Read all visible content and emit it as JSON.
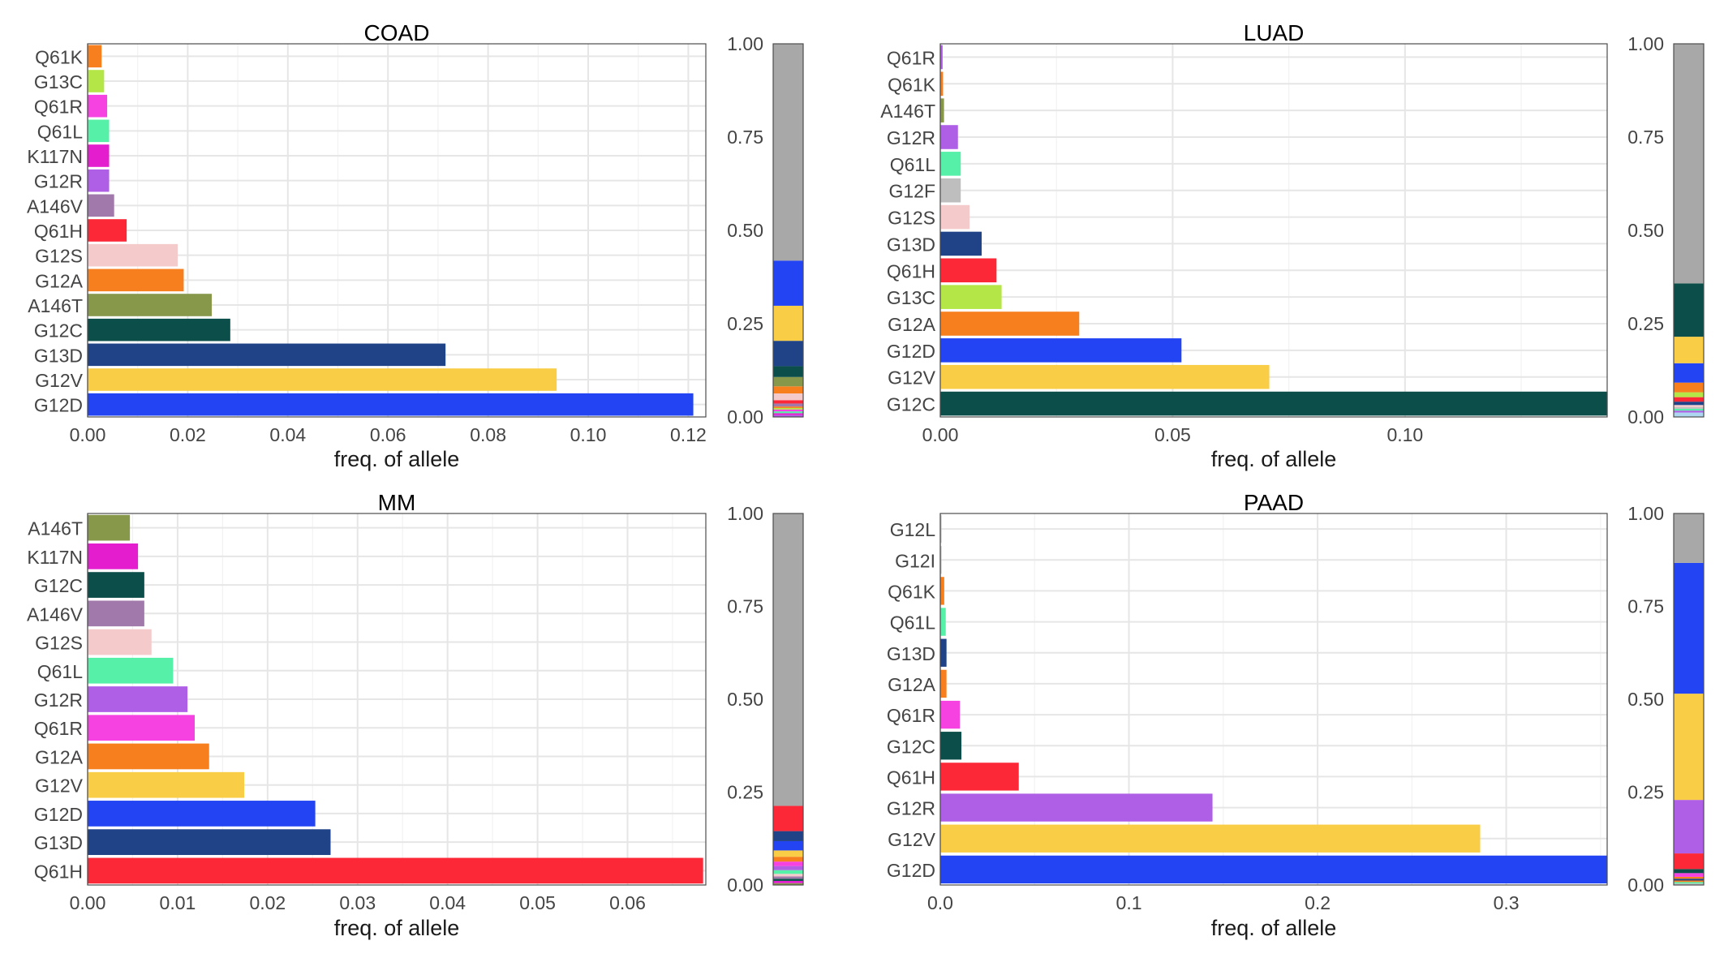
{
  "charts": [
    {
      "title": "COAD",
      "xlabel": "freq. of allele",
      "xlim": [
        0,
        0.1235
      ],
      "xticks": [
        "0.00",
        "0.02",
        "0.04",
        "0.06",
        "0.08",
        "0.10",
        "0.12"
      ],
      "xtick_values": [
        0,
        0.02,
        0.04,
        0.06,
        0.08,
        0.1,
        0.12
      ],
      "bars": [
        {
          "label": "Q61K",
          "value": 0.0028,
          "color": "#F77F1E"
        },
        {
          "label": "G13C",
          "value": 0.0033,
          "color": "#B5E647"
        },
        {
          "label": "Q61R",
          "value": 0.0039,
          "color": "#F542E0"
        },
        {
          "label": "Q61L",
          "value": 0.0043,
          "color": "#57F0A9"
        },
        {
          "label": "K117N",
          "value": 0.0043,
          "color": "#E41ECE"
        },
        {
          "label": "G12R",
          "value": 0.0043,
          "color": "#AE5FE6"
        },
        {
          "label": "A146V",
          "value": 0.0053,
          "color": "#A17AAB"
        },
        {
          "label": "Q61H",
          "value": 0.0078,
          "color": "#FC2837"
        },
        {
          "label": "G12S",
          "value": 0.018,
          "color": "#F4CACA"
        },
        {
          "label": "G12A",
          "value": 0.0192,
          "color": "#F77F1E"
        },
        {
          "label": "A146T",
          "value": 0.0248,
          "color": "#87984B"
        },
        {
          "label": "G12C",
          "value": 0.0285,
          "color": "#0C4F4A"
        },
        {
          "label": "G13D",
          "value": 0.0715,
          "color": "#1F4386"
        },
        {
          "label": "G12V",
          "value": 0.0937,
          "color": "#F9CD46"
        },
        {
          "label": "G12D",
          "value": 0.121,
          "color": "#2244F3"
        }
      ],
      "stack_ticks": [
        "0.00",
        "0.25",
        "0.50",
        "0.75",
        "1.00"
      ],
      "stack": [
        {
          "value": 0.005,
          "color": "#AE5FE6"
        },
        {
          "value": 0.005,
          "color": "#E41ECE"
        },
        {
          "value": 0.005,
          "color": "#57F0A9"
        },
        {
          "value": 0.005,
          "color": "#F542E0"
        },
        {
          "value": 0.004,
          "color": "#B5E647"
        },
        {
          "value": 0.004,
          "color": "#F77F1E"
        },
        {
          "value": 0.008,
          "color": "#A17AAB"
        },
        {
          "value": 0.009,
          "color": "#FC2837"
        },
        {
          "value": 0.018,
          "color": "#F4CACA"
        },
        {
          "value": 0.019,
          "color": "#F77F1E"
        },
        {
          "value": 0.025,
          "color": "#87984B"
        },
        {
          "value": 0.029,
          "color": "#0C4F4A"
        },
        {
          "value": 0.068,
          "color": "#1F4386"
        },
        {
          "value": 0.094,
          "color": "#F9CD46"
        },
        {
          "value": 0.121,
          "color": "#2244F3"
        },
        {
          "value": 0.581,
          "color": "#A8A8A8"
        }
      ]
    },
    {
      "title": "LUAD",
      "xlabel": "freq. of allele",
      "xlim": [
        0,
        0.1435
      ],
      "xticks": [
        "0.00",
        "0.05",
        "0.10"
      ],
      "xtick_values": [
        0,
        0.05,
        0.1
      ],
      "bars": [
        {
          "label": "Q61R",
          "value": 0.0005,
          "color": "#AE5FE6"
        },
        {
          "label": "Q61K",
          "value": 0.0006,
          "color": "#F77F1E"
        },
        {
          "label": "A146T",
          "value": 0.0008,
          "color": "#87984B"
        },
        {
          "label": "G12R",
          "value": 0.0038,
          "color": "#AE5FE6"
        },
        {
          "label": "Q61L",
          "value": 0.0044,
          "color": "#57F0A9"
        },
        {
          "label": "G12F",
          "value": 0.0044,
          "color": "#BEBEBE"
        },
        {
          "label": "G12S",
          "value": 0.0063,
          "color": "#F4CACA"
        },
        {
          "label": "G13D",
          "value": 0.0089,
          "color": "#1F4386"
        },
        {
          "label": "Q61H",
          "value": 0.0121,
          "color": "#FC2837"
        },
        {
          "label": "G13C",
          "value": 0.0132,
          "color": "#B5E647"
        },
        {
          "label": "G12A",
          "value": 0.0299,
          "color": "#F77F1E"
        },
        {
          "label": "G12D",
          "value": 0.0519,
          "color": "#2244F3"
        },
        {
          "label": "G12V",
          "value": 0.0708,
          "color": "#F9CD46"
        },
        {
          "label": "G12C",
          "value": 0.1436,
          "color": "#0C4F4A"
        }
      ],
      "stack_ticks": [
        "0.00",
        "0.25",
        "0.50",
        "0.75",
        "1.00"
      ],
      "stack": [
        {
          "value": 0.012,
          "color": "#AED6F1"
        },
        {
          "value": 0.005,
          "color": "#AE5FE6"
        },
        {
          "value": 0.005,
          "color": "#57F0A9"
        },
        {
          "value": 0.004,
          "color": "#BEBEBE"
        },
        {
          "value": 0.006,
          "color": "#F4CACA"
        },
        {
          "value": 0.009,
          "color": "#1F4386"
        },
        {
          "value": 0.012,
          "color": "#FC2837"
        },
        {
          "value": 0.013,
          "color": "#B5E647"
        },
        {
          "value": 0.026,
          "color": "#F77F1E"
        },
        {
          "value": 0.052,
          "color": "#2244F3"
        },
        {
          "value": 0.071,
          "color": "#F9CD46"
        },
        {
          "value": 0.143,
          "color": "#0C4F4A"
        },
        {
          "value": 0.642,
          "color": "#A8A8A8"
        }
      ]
    },
    {
      "title": "MM",
      "xlabel": "freq. of allele",
      "xlim": [
        0,
        0.0687
      ],
      "xticks": [
        "0.00",
        "0.01",
        "0.02",
        "0.03",
        "0.04",
        "0.05",
        "0.06"
      ],
      "xtick_values": [
        0,
        0.01,
        0.02,
        0.03,
        0.04,
        0.05,
        0.06
      ],
      "bars": [
        {
          "label": "A146T",
          "value": 0.0047,
          "color": "#87984B"
        },
        {
          "label": "K117N",
          "value": 0.0056,
          "color": "#E41ECE"
        },
        {
          "label": "G12C",
          "value": 0.0063,
          "color": "#0C4F4A"
        },
        {
          "label": "A146V",
          "value": 0.0063,
          "color": "#A17AAB"
        },
        {
          "label": "G12S",
          "value": 0.0071,
          "color": "#F4CACA"
        },
        {
          "label": "Q61L",
          "value": 0.0095,
          "color": "#57F0A9"
        },
        {
          "label": "G12R",
          "value": 0.0111,
          "color": "#AE5FE6"
        },
        {
          "label": "Q61R",
          "value": 0.0119,
          "color": "#F542E0"
        },
        {
          "label": "G12A",
          "value": 0.0135,
          "color": "#F77F1E"
        },
        {
          "label": "G12V",
          "value": 0.0174,
          "color": "#F9CD46"
        },
        {
          "label": "G12D",
          "value": 0.0253,
          "color": "#2244F3"
        },
        {
          "label": "G13D",
          "value": 0.027,
          "color": "#1F4386"
        },
        {
          "label": "Q61H",
          "value": 0.0684,
          "color": "#FC2837"
        }
      ],
      "stack_ticks": [
        "0.00",
        "0.25",
        "0.50",
        "0.75",
        "1.00"
      ],
      "stack": [
        {
          "value": 0.005,
          "color": "#87984B"
        },
        {
          "value": 0.006,
          "color": "#E41ECE"
        },
        {
          "value": 0.006,
          "color": "#0C4F4A"
        },
        {
          "value": 0.006,
          "color": "#A17AAB"
        },
        {
          "value": 0.007,
          "color": "#F4CACA"
        },
        {
          "value": 0.01,
          "color": "#57F0A9"
        },
        {
          "value": 0.011,
          "color": "#AE5FE6"
        },
        {
          "value": 0.012,
          "color": "#F542E0"
        },
        {
          "value": 0.013,
          "color": "#F77F1E"
        },
        {
          "value": 0.017,
          "color": "#F9CD46"
        },
        {
          "value": 0.025,
          "color": "#2244F3"
        },
        {
          "value": 0.027,
          "color": "#1F4386"
        },
        {
          "value": 0.068,
          "color": "#FC2837"
        },
        {
          "value": 0.787,
          "color": "#A8A8A8"
        }
      ]
    },
    {
      "title": "PAAD",
      "xlabel": "freq. of allele",
      "xlim": [
        0,
        0.3535
      ],
      "xticks": [
        "0.0",
        "0.1",
        "0.2",
        "0.3"
      ],
      "xtick_values": [
        0,
        0.1,
        0.2,
        0.3
      ],
      "bars": [
        {
          "label": "G12L",
          "value": 0.0004,
          "color": "#BEBEBE"
        },
        {
          "label": "G12I",
          "value": 0.0004,
          "color": "#BEBEBE"
        },
        {
          "label": "Q61K",
          "value": 0.0021,
          "color": "#F77F1E"
        },
        {
          "label": "Q61L",
          "value": 0.0029,
          "color": "#57F0A9"
        },
        {
          "label": "G13D",
          "value": 0.0033,
          "color": "#1F4386"
        },
        {
          "label": "G12A",
          "value": 0.0033,
          "color": "#F77F1E"
        },
        {
          "label": "Q61R",
          "value": 0.0104,
          "color": "#F542E0"
        },
        {
          "label": "G12C",
          "value": 0.0112,
          "color": "#0C4F4A"
        },
        {
          "label": "Q61H",
          "value": 0.0416,
          "color": "#FC2837"
        },
        {
          "label": "G12R",
          "value": 0.1443,
          "color": "#AE5FE6"
        },
        {
          "label": "G12V",
          "value": 0.2862,
          "color": "#F9CD46"
        },
        {
          "label": "G12D",
          "value": 0.3537,
          "color": "#2244F3"
        }
      ],
      "stack_ticks": [
        "0.00",
        "0.25",
        "0.50",
        "0.75",
        "1.00"
      ],
      "stack": [
        {
          "value": 0.004,
          "color": "#BEBEBE"
        },
        {
          "value": 0.004,
          "color": "#57F0A9"
        },
        {
          "value": 0.004,
          "color": "#F77F1E"
        },
        {
          "value": 0.005,
          "color": "#1F4386"
        },
        {
          "value": 0.005,
          "color": "#F77F1E"
        },
        {
          "value": 0.01,
          "color": "#F542E0"
        },
        {
          "value": 0.011,
          "color": "#0C4F4A"
        },
        {
          "value": 0.042,
          "color": "#FC2837"
        },
        {
          "value": 0.144,
          "color": "#AE5FE6"
        },
        {
          "value": 0.286,
          "color": "#F9CD46"
        },
        {
          "value": 0.352,
          "color": "#2244F3"
        },
        {
          "value": 0.133,
          "color": "#A8A8A8"
        }
      ]
    }
  ]
}
